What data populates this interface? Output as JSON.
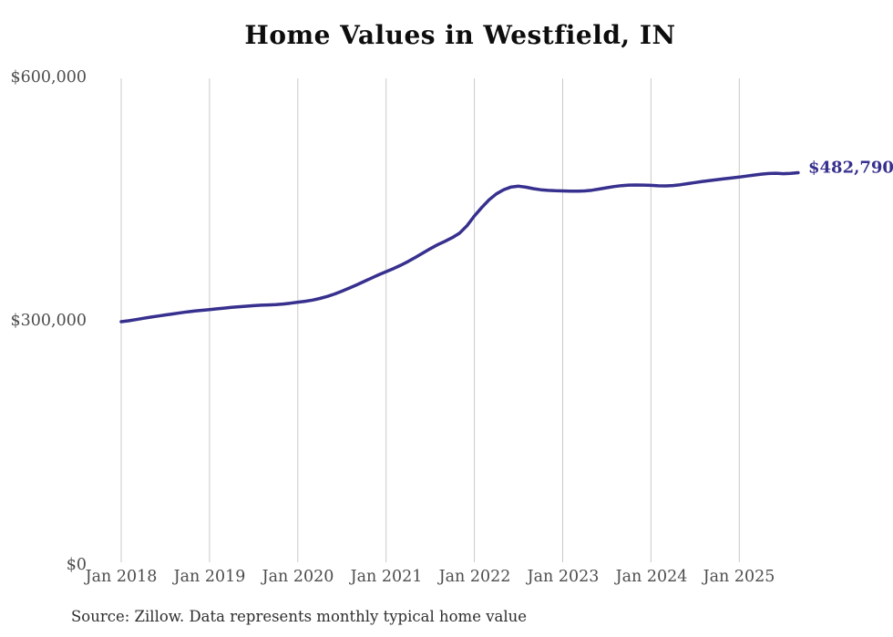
{
  "title": "Home Values in Westfield, IN",
  "end_label": "$482,790",
  "source": "Source: Zillow. Data represents monthly typical home value",
  "colors": {
    "line": "#37308e",
    "end_label": "#37308e",
    "grid": "#c9c9c9",
    "axis_text": "#4d4d4d",
    "title_text": "#0d0d0d",
    "source_text": "#2e2e2e",
    "background": "#ffffff"
  },
  "chart_data": {
    "type": "line",
    "title": "Home Values in Westfield, IN",
    "xlabel": "",
    "ylabel": "",
    "ylim": [
      0,
      600000
    ],
    "y_tick_labels": [
      "$0",
      "$300,000",
      "$600,000"
    ],
    "y_tick_values": [
      0,
      300000,
      600000
    ],
    "x_tick_labels": [
      "Jan 2018",
      "Jan 2019",
      "Jan 2020",
      "Jan 2021",
      "Jan 2022",
      "Jan 2023",
      "Jan 2024",
      "Jan 2025"
    ],
    "grid": "vertical-only",
    "legend": "none",
    "annotation": "$482,790",
    "series": [
      {
        "name": "Typical home value",
        "frequency": "monthly",
        "start_month": "2018-01",
        "end_month": "2025-09",
        "final_value": 482790,
        "values": [
          299400,
          300600,
          302000,
          303600,
          305100,
          306400,
          307700,
          309000,
          310300,
          311500,
          312600,
          313500,
          314300,
          315200,
          316100,
          317000,
          317800,
          318500,
          319200,
          319700,
          320100,
          320500,
          321200,
          322200,
          323400,
          324600,
          326000,
          328000,
          330500,
          333500,
          337000,
          340800,
          344800,
          348900,
          353000,
          357200,
          361000,
          364800,
          369000,
          373600,
          378600,
          384000,
          389300,
          394100,
          398400,
          402900,
          408600,
          417500,
          429500,
          440000,
          449500,
          456800,
          462000,
          465200,
          466200,
          465000,
          463200,
          461800,
          461000,
          460600,
          460400,
          460100,
          460000,
          460400,
          461300,
          462700,
          464300,
          465800,
          466900,
          467600,
          467700,
          467500,
          467200,
          466700,
          466500,
          467000,
          468000,
          469300,
          470700,
          472000,
          473200,
          474300,
          475400,
          476400,
          477400,
          478600,
          479900,
          481000,
          481800,
          482100,
          481600,
          481900,
          482790
        ]
      }
    ]
  }
}
